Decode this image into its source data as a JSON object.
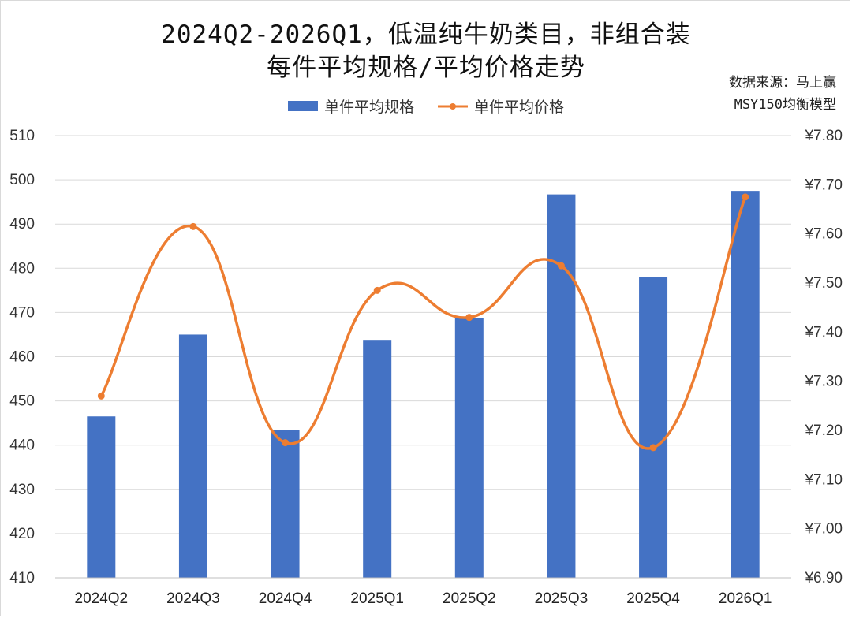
{
  "title_line1": "2024Q2-2026Q1，低温纯牛奶类目，非组合装",
  "title_line2": "每件平均规格/平均价格走势",
  "source_line1": "数据来源：马上赢",
  "source_line2": "MSY150均衡模型",
  "colors": {
    "bar": "#4472c4",
    "line": "#ed7d31",
    "grid": "#d9d9d9"
  },
  "chart_data": {
    "type": "bar",
    "categories": [
      "2024Q2",
      "2024Q3",
      "2024Q4",
      "2025Q1",
      "2025Q2",
      "2025Q3",
      "2025Q4",
      "2026Q1"
    ],
    "series": [
      {
        "name": "单件平均规格",
        "type": "bar",
        "axis": "left",
        "values": [
          446.5,
          465.0,
          443.5,
          463.8,
          468.7,
          496.7,
          478.0,
          497.5
        ]
      },
      {
        "name": "单件平均价格",
        "type": "line",
        "axis": "right",
        "smooth": true,
        "values": [
          7.27,
          7.615,
          7.175,
          7.485,
          7.43,
          7.535,
          7.165,
          7.675
        ]
      }
    ],
    "y_left": {
      "min": 410,
      "max": 510,
      "step": 10,
      "ticks": [
        "410",
        "420",
        "430",
        "440",
        "450",
        "460",
        "470",
        "480",
        "490",
        "500",
        "510"
      ]
    },
    "y_right": {
      "min": 6.9,
      "max": 7.8,
      "step": 0.1,
      "ticks": [
        "¥6.90",
        "¥7.00",
        "¥7.10",
        "¥7.20",
        "¥7.30",
        "¥7.40",
        "¥7.50",
        "¥7.60",
        "¥7.70",
        "¥7.80"
      ]
    },
    "grid": true,
    "legend_position": "top-center"
  }
}
